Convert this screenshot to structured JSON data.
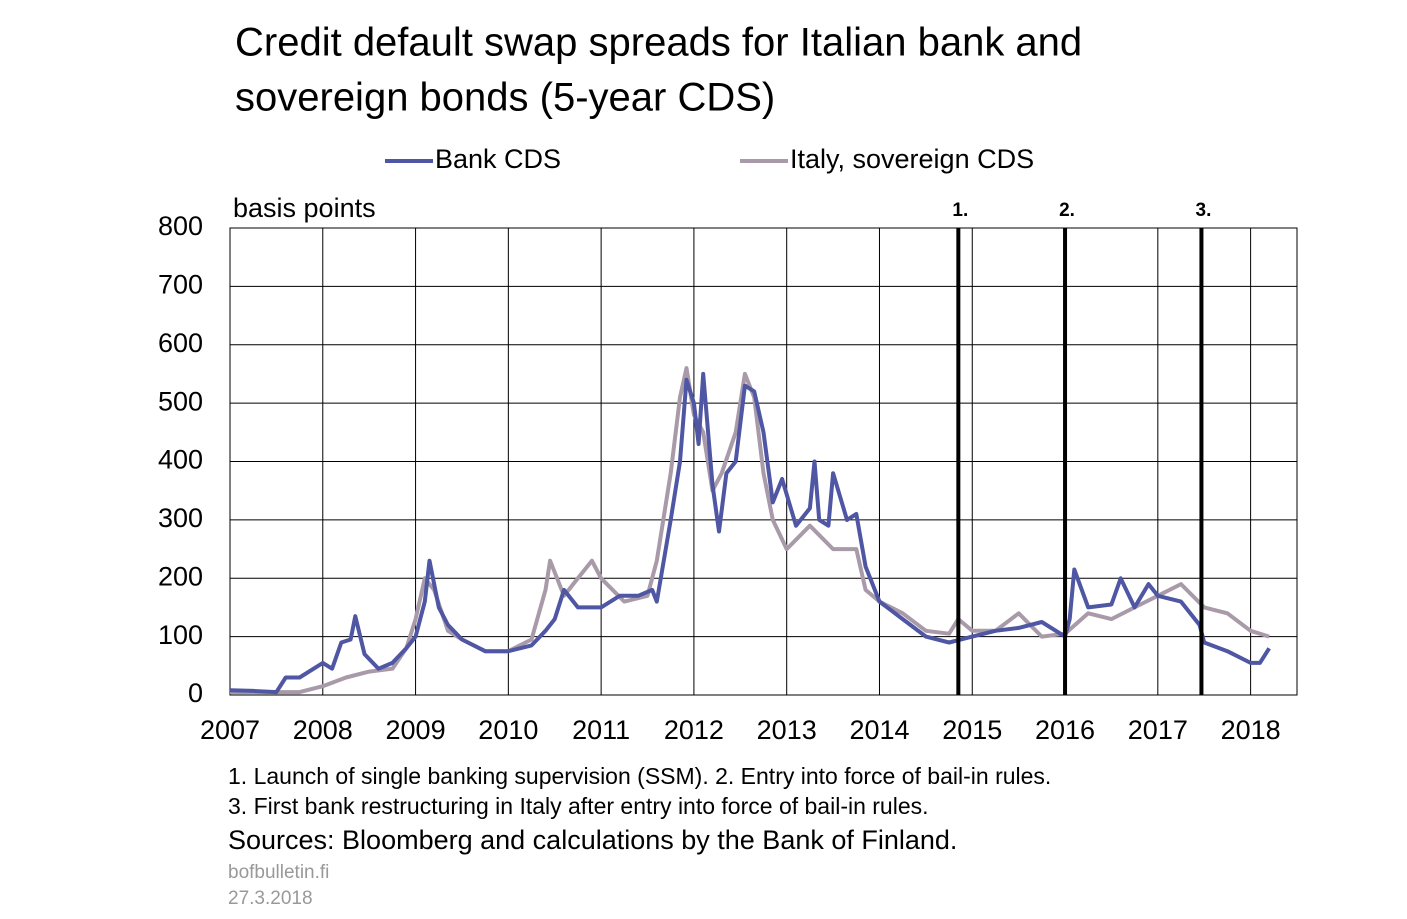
{
  "chart_data": {
    "type": "line",
    "title": [
      "Credit default swap spreads for Italian bank and",
      "sovereign bonds (5-year CDS)"
    ],
    "y_label": "basis points",
    "xlim": [
      2007,
      2018.5
    ],
    "xticks": [
      2007,
      2008,
      2009,
      2010,
      2011,
      2012,
      2013,
      2014,
      2015,
      2016,
      2017,
      2018
    ],
    "ylim": [
      0,
      800
    ],
    "yticks": [
      0,
      100,
      200,
      300,
      400,
      500,
      600,
      700,
      800
    ],
    "grid": true,
    "series": [
      {
        "name": "Bank CDS",
        "color": "#4f56a3",
        "x": [
          2007.0,
          2007.25,
          2007.5,
          2007.6,
          2007.75,
          2008.0,
          2008.1,
          2008.2,
          2008.3,
          2008.35,
          2008.45,
          2008.6,
          2008.75,
          2008.9,
          2009.0,
          2009.1,
          2009.15,
          2009.25,
          2009.35,
          2009.5,
          2009.75,
          2010.0,
          2010.25,
          2010.4,
          2010.5,
          2010.6,
          2010.75,
          2011.0,
          2011.2,
          2011.4,
          2011.55,
          2011.6,
          2011.75,
          2011.85,
          2011.92,
          2012.0,
          2012.05,
          2012.1,
          2012.2,
          2012.27,
          2012.35,
          2012.45,
          2012.55,
          2012.65,
          2012.75,
          2012.85,
          2012.95,
          2013.1,
          2013.25,
          2013.3,
          2013.35,
          2013.45,
          2013.5,
          2013.65,
          2013.75,
          2013.85,
          2014.0,
          2014.25,
          2014.5,
          2014.75,
          2015.0,
          2015.25,
          2015.5,
          2015.75,
          2016.0,
          2016.05,
          2016.1,
          2016.25,
          2016.5,
          2016.6,
          2016.75,
          2016.9,
          2017.0,
          2017.25,
          2017.45,
          2017.5,
          2017.75,
          2018.0,
          2018.1,
          2018.2
        ],
        "values": [
          8,
          7,
          5,
          30,
          30,
          55,
          45,
          90,
          95,
          135,
          70,
          45,
          55,
          80,
          100,
          160,
          230,
          150,
          120,
          95,
          75,
          75,
          85,
          110,
          130,
          180,
          150,
          150,
          170,
          170,
          180,
          160,
          300,
          400,
          540,
          500,
          430,
          550,
          360,
          280,
          380,
          400,
          530,
          520,
          450,
          330,
          370,
          290,
          320,
          400,
          300,
          290,
          380,
          300,
          310,
          220,
          160,
          130,
          100,
          90,
          100,
          110,
          115,
          125,
          100,
          130,
          215,
          150,
          155,
          200,
          150,
          190,
          170,
          160,
          120,
          90,
          75,
          55,
          55,
          80
        ]
      },
      {
        "name": "Italy, sovereign CDS",
        "color": "#a89aa8",
        "x": [
          2007.0,
          2007.5,
          2007.75,
          2008.0,
          2008.25,
          2008.5,
          2008.75,
          2008.9,
          2009.0,
          2009.1,
          2009.2,
          2009.35,
          2009.5,
          2009.75,
          2010.0,
          2010.25,
          2010.4,
          2010.45,
          2010.6,
          2010.75,
          2010.9,
          2011.0,
          2011.25,
          2011.5,
          2011.6,
          2011.75,
          2011.85,
          2011.92,
          2012.0,
          2012.1,
          2012.2,
          2012.3,
          2012.45,
          2012.55,
          2012.65,
          2012.75,
          2012.85,
          2013.0,
          2013.25,
          2013.5,
          2013.75,
          2013.85,
          2014.0,
          2014.25,
          2014.5,
          2014.75,
          2014.85,
          2015.0,
          2015.25,
          2015.5,
          2015.75,
          2016.0,
          2016.25,
          2016.5,
          2016.75,
          2017.0,
          2017.25,
          2017.5,
          2017.75,
          2018.0,
          2018.2
        ],
        "values": [
          5,
          5,
          5,
          15,
          30,
          40,
          45,
          80,
          130,
          200,
          180,
          110,
          95,
          75,
          75,
          95,
          180,
          230,
          170,
          200,
          230,
          200,
          160,
          170,
          230,
          380,
          510,
          560,
          480,
          450,
          350,
          380,
          450,
          550,
          510,
          380,
          300,
          250,
          290,
          250,
          250,
          180,
          160,
          140,
          110,
          105,
          130,
          110,
          110,
          140,
          100,
          105,
          140,
          130,
          150,
          170,
          190,
          150,
          140,
          110,
          100
        ]
      }
    ],
    "events": [
      {
        "x": 2014.85,
        "label": "1."
      },
      {
        "x": 2016.0,
        "label": "2."
      },
      {
        "x": 2017.47,
        "label": "3."
      }
    ],
    "notes": [
      "1. Launch of single banking supervision (SSM). 2. Entry into force of bail-in rules.",
      "3. First bank restructuring in Italy after entry into force of bail-in rules."
    ],
    "source": "Sources: Bloomberg and calculations by the Bank of Finland.",
    "footer": [
      "bofbulletin.fi",
      "27.3.2018"
    ]
  }
}
